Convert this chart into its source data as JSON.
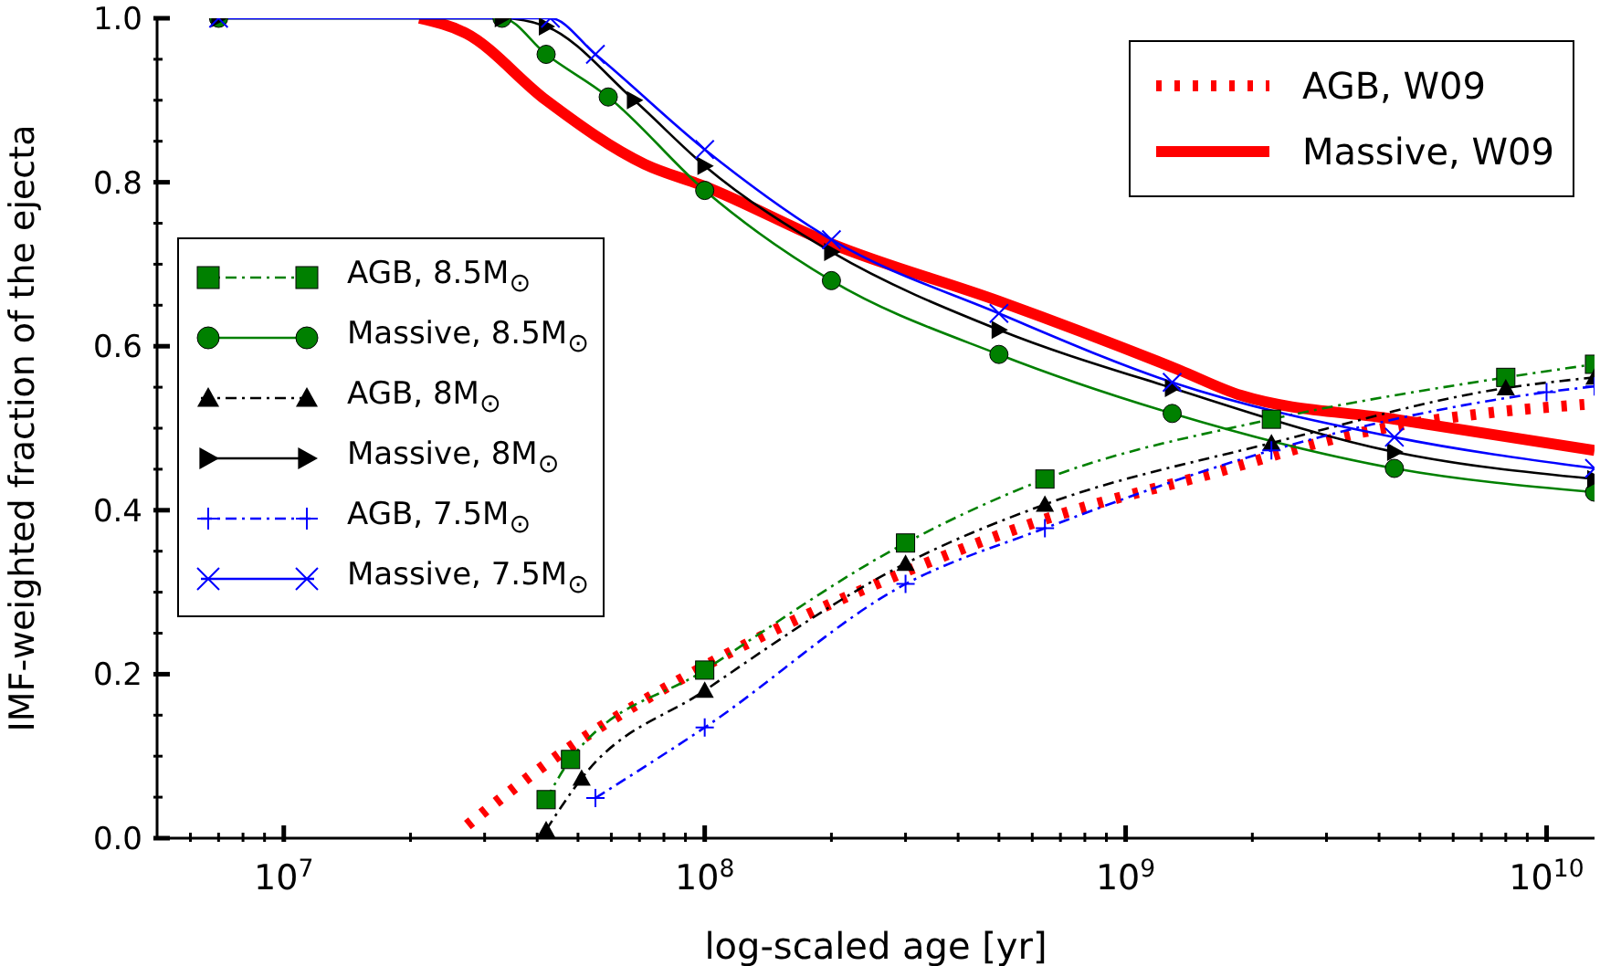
{
  "chart_data": {
    "type": "line",
    "xlabel": "log-scaled age [yr]",
    "ylabel": "IMF-weighted fraction of the ejecta",
    "log": "x",
    "xlim": [
      5000000.0,
      13000000000.0
    ],
    "ylim": [
      0,
      1
    ],
    "xticks": [
      {
        "value": 6000000.0,
        "label": null
      },
      {
        "value": 7000000.0,
        "label": null
      },
      {
        "value": 8000000.0,
        "label": null
      },
      {
        "value": 9000000.0,
        "label": null
      },
      {
        "value": 10000000.0,
        "label": "10$^{7}$"
      },
      {
        "value": 20000000.0,
        "label": null
      },
      {
        "value": 30000000.0,
        "label": null
      },
      {
        "value": 40000000.0,
        "label": null
      },
      {
        "value": 50000000.0,
        "label": null
      },
      {
        "value": 60000000.0,
        "label": null
      },
      {
        "value": 70000000.0,
        "label": null
      },
      {
        "value": 80000000.0,
        "label": null
      },
      {
        "value": 90000000.0,
        "label": null
      },
      {
        "value": 100000000.0,
        "label": "10$^{8}$"
      },
      {
        "value": 200000000.0,
        "label": null
      },
      {
        "value": 300000000.0,
        "label": null
      },
      {
        "value": 400000000.0,
        "label": null
      },
      {
        "value": 500000000.0,
        "label": null
      },
      {
        "value": 600000000.0,
        "label": null
      },
      {
        "value": 700000000.0,
        "label": null
      },
      {
        "value": 800000000.0,
        "label": null
      },
      {
        "value": 900000000.0,
        "label": null
      },
      {
        "value": 1000000000.0,
        "label": "10$^{9}$"
      },
      {
        "value": 2000000000.0,
        "label": null
      },
      {
        "value": 3000000000.0,
        "label": null
      },
      {
        "value": 4000000000.0,
        "label": null
      },
      {
        "value": 5000000000.0,
        "label": null
      },
      {
        "value": 6000000000.0,
        "label": null
      },
      {
        "value": 7000000000.0,
        "label": null
      },
      {
        "value": 8000000000.0,
        "label": null
      },
      {
        "value": 9000000000.0,
        "label": null
      },
      {
        "value": 10000000000.0,
        "label": "10$^{10}$"
      }
    ],
    "yticks": [
      {
        "value": 0,
        "label": "0.0"
      },
      {
        "value": 0.05,
        "label": null
      },
      {
        "value": 0.1,
        "label": null
      },
      {
        "value": 0.15,
        "label": null
      },
      {
        "value": 0.2,
        "label": "0.2"
      },
      {
        "value": 0.25,
        "label": null
      },
      {
        "value": 0.3,
        "label": null
      },
      {
        "value": 0.35,
        "label": null
      },
      {
        "value": 0.4,
        "label": "0.4"
      },
      {
        "value": 0.45,
        "label": null
      },
      {
        "value": 0.5,
        "label": null
      },
      {
        "value": 0.55,
        "label": null
      },
      {
        "value": 0.6,
        "label": "0.6"
      },
      {
        "value": 0.65,
        "label": null
      },
      {
        "value": 0.7,
        "label": null
      },
      {
        "value": 0.75,
        "label": null
      },
      {
        "value": 0.8,
        "label": "0.8"
      },
      {
        "value": 0.85,
        "label": null
      },
      {
        "value": 0.9,
        "label": null
      },
      {
        "value": 0.95,
        "label": null
      },
      {
        "value": 1,
        "label": "1.0"
      }
    ],
    "legend": "top right",
    "series": [
      {
        "name": "AGB, W09",
        "color": "#ff0000",
        "line_style": "dotted",
        "x": [
          27300000.0,
          46600000.0,
          100000000.0,
          300000000.0,
          643000000.0,
          1580000000.0,
          3650000000.0,
          7100000000.0,
          12300000000.0
        ],
        "values": [
          0.016,
          0.107,
          0.21,
          0.325,
          0.389,
          0.444,
          0.495,
          0.518,
          0.529
        ]
      },
      {
        "name": "Massive, W09",
        "color": "#ff0000",
        "line_style": "solid",
        "x": [
          21000000.0,
          27000000.0,
          42000000.0,
          72000000.0,
          100000000.0,
          200000000.0,
          500000000.0,
          1340000000.0,
          1880000000.0,
          4350000000.0,
          13000000000.0
        ],
        "values": [
          1.0,
          0.982,
          0.9,
          0.822,
          0.795,
          0.725,
          0.655,
          0.571,
          0.54,
          0.511,
          0.473
        ]
      },
      {
        "name": "AGB, 8.5M$_{⊙}$",
        "color": "#008000",
        "line_style": "dashed",
        "marker": "square",
        "x": [
          42000000.0,
          48000000.0,
          100000000.0,
          300000000.0,
          643000000.0,
          2220000000.0,
          8000000000.0,
          13000000000.0
        ],
        "values": [
          0.047,
          0.096,
          0.205,
          0.36,
          0.438,
          0.511,
          0.562,
          0.578
        ]
      },
      {
        "name": "Massive, 8.5M$_{⊙}$",
        "color": "#008000",
        "line_style": "solid",
        "marker": "circle",
        "x": [
          7000000.0,
          33000000.0,
          42000000.0,
          59000000.0,
          100000000.0,
          200000000.0,
          500000000.0,
          1290000000.0,
          4350000000.0,
          13000000000.0
        ],
        "values": [
          1.0,
          1.0,
          0.956,
          0.904,
          0.79,
          0.68,
          0.59,
          0.518,
          0.451,
          0.422
        ]
      },
      {
        "name": "AGB, 8M$_{⊙}$",
        "color": "#000000",
        "line_style": "dashed",
        "marker": "triangle",
        "x": [
          42000000.0,
          51000000.0,
          100000000.0,
          300000000.0,
          643000000.0,
          2220000000.0,
          8000000000.0,
          13000000000.0
        ],
        "values": [
          0.01,
          0.073,
          0.18,
          0.335,
          0.407,
          0.482,
          0.549,
          0.562
        ]
      },
      {
        "name": "Massive, 8M$_{⊙}$",
        "color": "#000000",
        "line_style": "solid",
        "marker": "triangle",
        "x": [
          7000000.0,
          33000000.0,
          42000000.0,
          68000000.0,
          100000000.0,
          200000000.0,
          500000000.0,
          1290000000.0,
          4350000000.0,
          13000000000.0
        ],
        "values": [
          1.0,
          1.0,
          0.99,
          0.9,
          0.82,
          0.715,
          0.62,
          0.549,
          0.471,
          0.438
        ]
      },
      {
        "name": "AGB, 7.5M$_{⊙}$",
        "color": "#0000ff",
        "line_style": "dashed",
        "marker": "cross",
        "x": [
          55000000.0,
          100000000.0,
          300000000.0,
          643000000.0,
          2220000000.0,
          10000000000.0,
          13000000000.0
        ],
        "values": [
          0.049,
          0.135,
          0.31,
          0.378,
          0.473,
          0.544,
          0.551
        ]
      },
      {
        "name": "Massive, 7.5M$_{⊙}$",
        "color": "#0000ff",
        "line_style": "solid",
        "marker": "cross",
        "x": [
          7000000.0,
          43000000.0,
          55000000.0,
          100000000.0,
          200000000.0,
          500000000.0,
          1290000000.0,
          4350000000.0,
          13000000000.0
        ],
        "values": [
          1.0,
          1.0,
          0.956,
          0.84,
          0.73,
          0.64,
          0.556,
          0.489,
          0.451
        ]
      }
    ]
  }
}
